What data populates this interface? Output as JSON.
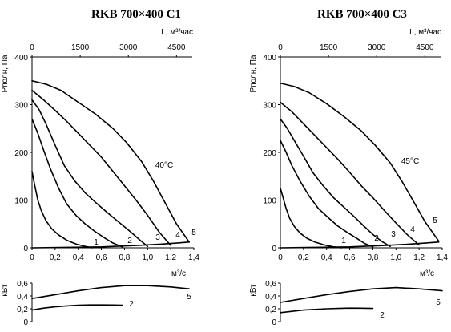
{
  "chart_data": [
    {
      "type": "line",
      "title": "RKB 700×400 C1",
      "xlabel": "м³/с",
      "ylabel": "Рполн, Па",
      "x2label": "L, м³/час",
      "xlim": [
        0,
        1.4
      ],
      "ylim": [
        0,
        400
      ],
      "xticks": [
        "0",
        "0,2",
        "0,4",
        "0,6",
        "0,8",
        "1,0",
        "1,2",
        "1,4"
      ],
      "yticks": [
        "0",
        "100",
        "200",
        "300",
        "400"
      ],
      "x2ticks": [
        "0",
        "1500",
        "3000",
        "4500"
      ],
      "annotation": "40°C",
      "series": [
        {
          "name": "1",
          "x": [
            0,
            0.02,
            0.05,
            0.08,
            0.12,
            0.17,
            0.23,
            0.3,
            0.38,
            0.46,
            0.52
          ],
          "y": [
            160,
            135,
            100,
            78,
            57,
            40,
            27,
            16,
            8,
            3,
            0
          ]
        },
        {
          "name": "2",
          "x": [
            0,
            0.05,
            0.1,
            0.16,
            0.23,
            0.3,
            0.38,
            0.46,
            0.54,
            0.62,
            0.7,
            0.78
          ],
          "y": [
            270,
            240,
            205,
            165,
            125,
            92,
            68,
            50,
            35,
            22,
            10,
            2
          ]
        },
        {
          "name": "3",
          "x": [
            0,
            0.06,
            0.12,
            0.2,
            0.28,
            0.37,
            0.46,
            0.56,
            0.66,
            0.76,
            0.85,
            0.93,
            1.0
          ],
          "y": [
            310,
            290,
            260,
            215,
            172,
            140,
            115,
            93,
            72,
            52,
            34,
            17,
            3
          ]
        },
        {
          "name": "4",
          "x": [
            0,
            0.1,
            0.2,
            0.3,
            0.4,
            0.5,
            0.6,
            0.7,
            0.8,
            0.9,
            1.0,
            1.1,
            1.2
          ],
          "y": [
            330,
            310,
            288,
            265,
            240,
            215,
            190,
            160,
            130,
            100,
            68,
            33,
            5
          ]
        },
        {
          "name": "5",
          "x": [
            0,
            0.12,
            0.25,
            0.4,
            0.55,
            0.7,
            0.82,
            0.95,
            1.05,
            1.15,
            1.25,
            1.36
          ],
          "y": [
            350,
            343,
            330,
            305,
            280,
            250,
            220,
            180,
            140,
            95,
            50,
            12
          ]
        }
      ],
      "system_line": {
        "x": [
          0,
          0.3,
          0.6,
          0.9,
          1.1,
          1.25,
          1.36
        ],
        "y": [
          0,
          1,
          2,
          5,
          7.5,
          10,
          12
        ]
      },
      "power": {
        "ylabel": "кВт",
        "ylim": [
          0,
          0.6
        ],
        "yticks": [
          "0",
          "0,2",
          "0,4",
          "0,6"
        ],
        "series": [
          {
            "name": "5",
            "x": [
              0,
              0.2,
              0.4,
              0.6,
              0.8,
              1.0,
              1.2,
              1.36
            ],
            "y": [
              0.36,
              0.42,
              0.48,
              0.53,
              0.56,
              0.56,
              0.54,
              0.51
            ]
          },
          {
            "name": "2",
            "x": [
              0,
              0.1,
              0.2,
              0.3,
              0.4,
              0.5,
              0.6,
              0.7,
              0.78
            ],
            "y": [
              0.18,
              0.21,
              0.23,
              0.245,
              0.255,
              0.26,
              0.26,
              0.258,
              0.255
            ]
          }
        ]
      }
    },
    {
      "type": "line",
      "title": "RKB 700×400 C3",
      "xlabel": "м³/с",
      "ylabel": "Рполн, Па",
      "x2label": "L, м³/час",
      "xlim": [
        0,
        1.4
      ],
      "ylim": [
        0,
        400
      ],
      "xticks": [
        "0",
        "0,2",
        "0,4",
        "0,6",
        "0,8",
        "1,0",
        "1,2",
        "1,4"
      ],
      "yticks": [
        "0",
        "100",
        "200",
        "300",
        "400"
      ],
      "x2ticks": [
        "0",
        "1500",
        "3000",
        "4500"
      ],
      "annotation": "45°C",
      "series": [
        {
          "name": "1",
          "x": [
            0,
            0.02,
            0.05,
            0.08,
            0.12,
            0.17,
            0.23,
            0.3,
            0.38,
            0.46,
            0.53
          ],
          "y": [
            125,
            108,
            82,
            62,
            45,
            31,
            20,
            12,
            6,
            2,
            0
          ]
        },
        {
          "name": "2",
          "x": [
            0,
            0.05,
            0.1,
            0.17,
            0.25,
            0.33,
            0.42,
            0.5,
            0.58,
            0.66,
            0.73,
            0.8
          ],
          "y": [
            225,
            200,
            172,
            140,
            108,
            82,
            62,
            45,
            32,
            20,
            9,
            2
          ]
        },
        {
          "name": "3",
          "x": [
            0,
            0.06,
            0.12,
            0.2,
            0.28,
            0.37,
            0.46,
            0.55,
            0.64,
            0.72,
            0.8,
            0.88,
            0.95
          ],
          "y": [
            270,
            250,
            225,
            192,
            158,
            130,
            105,
            85,
            65,
            46,
            28,
            13,
            3
          ]
        },
        {
          "name": "4",
          "x": [
            0,
            0.1,
            0.2,
            0.3,
            0.4,
            0.5,
            0.6,
            0.7,
            0.8,
            0.9,
            1.0,
            1.1,
            1.2
          ],
          "y": [
            305,
            285,
            260,
            235,
            210,
            185,
            158,
            130,
            105,
            78,
            52,
            27,
            6
          ]
        },
        {
          "name": "5",
          "x": [
            0,
            0.12,
            0.25,
            0.4,
            0.55,
            0.7,
            0.82,
            0.95,
            1.05,
            1.15,
            1.25,
            1.37
          ],
          "y": [
            345,
            338,
            325,
            302,
            275,
            245,
            215,
            178,
            140,
            98,
            55,
            14
          ]
        }
      ],
      "system_line": {
        "x": [
          0,
          0.3,
          0.6,
          0.9,
          1.1,
          1.25,
          1.37
        ],
        "y": [
          0,
          1,
          2,
          5,
          7.5,
          10,
          12
        ]
      },
      "power": {
        "ylabel": "кВт",
        "ylim": [
          0,
          0.6
        ],
        "yticks": [
          "0",
          "0,2",
          "0,4",
          "0,6"
        ],
        "series": [
          {
            "name": "5",
            "x": [
              0,
              0.2,
              0.4,
              0.6,
              0.8,
              1.0,
              1.2,
              1.4
            ],
            "y": [
              0.3,
              0.36,
              0.42,
              0.47,
              0.51,
              0.53,
              0.51,
              0.48
            ]
          },
          {
            "name": "2",
            "x": [
              0,
              0.1,
              0.2,
              0.3,
              0.4,
              0.5,
              0.6,
              0.7,
              0.8
            ],
            "y": [
              0.14,
              0.16,
              0.18,
              0.19,
              0.2,
              0.205,
              0.21,
              0.208,
              0.205
            ]
          }
        ]
      }
    }
  ]
}
